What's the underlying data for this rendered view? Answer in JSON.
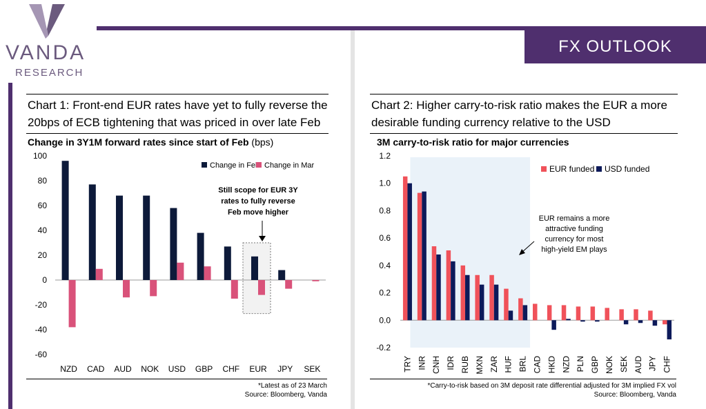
{
  "logo": {
    "name": "VANDA",
    "sub": "RESEARCH"
  },
  "banner": "FX OUTLOOK",
  "left": {
    "title": "Chart 1: Front-end EUR rates have yet to fully reverse the 20bps of ECB tightening that was priced in over late Feb",
    "subtitle": "Change in 3Y1M forward rates since start of Feb",
    "subtitle_unit": "(bps)",
    "footnote1": "*Latest as of 23 March",
    "footnote2": "Source: Bloomberg, Vanda"
  },
  "right": {
    "title": "Chart 2: Higher carry-to-risk ratio makes the EUR a more desirable funding currency relative to the USD",
    "subtitle": "3M carry-to-risk ratio for major currencies",
    "footnote1": "*Carry-to-risk based on 3M deposit rate differential adjusted for 3M implied FX vol",
    "footnote2": "Source: Bloomberg, Vanda"
  },
  "chart_data": [
    {
      "type": "bar",
      "title": "Change in 3Y1M forward rates since start of Feb (bps)",
      "categories": [
        "NZD",
        "CAD",
        "AUD",
        "NOK",
        "USD",
        "GBP",
        "CHF",
        "EUR",
        "JPY",
        "SEK"
      ],
      "series": [
        {
          "name": "Change in Feb",
          "color": "#0d1a3a",
          "values": [
            96,
            77,
            68,
            68,
            58,
            38,
            27,
            19,
            8,
            0
          ]
        },
        {
          "name": "Change in Mar",
          "color": "#d9527a",
          "values": [
            -38,
            9,
            -14,
            -13,
            14,
            11,
            -15,
            -12,
            -7,
            -1
          ]
        }
      ],
      "ylim": [
        -60,
        100
      ],
      "yticks": [
        100,
        80,
        60,
        40,
        20,
        0,
        -20,
        -40,
        -60
      ],
      "legend": "top-right",
      "annotation": "Still scope for EUR 3Y rates to fully reverse Feb move higher",
      "highlight_category": "EUR"
    },
    {
      "type": "bar",
      "title": "3M carry-to-risk ratio for major currencies",
      "categories": [
        "TRY",
        "INR",
        "CNH",
        "IDR",
        "RUB",
        "MXN",
        "ZAR",
        "HUF",
        "BRL",
        "CAD",
        "HKD",
        "NZD",
        "PLN",
        "GBP",
        "NOK",
        "SEK",
        "AUD",
        "JPY",
        "CHF"
      ],
      "series": [
        {
          "name": "EUR funded",
          "color": "#f0525a",
          "values": [
            1.05,
            0.93,
            0.54,
            0.51,
            0.4,
            0.33,
            0.33,
            0.23,
            0.16,
            0.12,
            0.11,
            0.11,
            0.1,
            0.1,
            0.09,
            0.08,
            0.08,
            0.07,
            -0.03
          ]
        },
        {
          "name": "USD funded",
          "color": "#0d1a5a",
          "values": [
            1.0,
            0.94,
            0.48,
            0.43,
            0.33,
            0.26,
            0.26,
            0.07,
            0.11,
            0.0,
            -0.07,
            0.01,
            -0.01,
            -0.01,
            0.0,
            -0.03,
            -0.02,
            -0.04,
            -0.14
          ]
        }
      ],
      "ylim": [
        -0.2,
        1.2
      ],
      "yticks": [
        "1.2",
        "1.0",
        "0.8",
        "0.6",
        "0.4",
        "0.2",
        "0.0",
        "-0.2"
      ],
      "legend": "top-right",
      "annotation": "EUR remains a more attractive funding currency for most high-yield EM plays",
      "shaded_categories": [
        "TRY",
        "BRL"
      ]
    }
  ]
}
